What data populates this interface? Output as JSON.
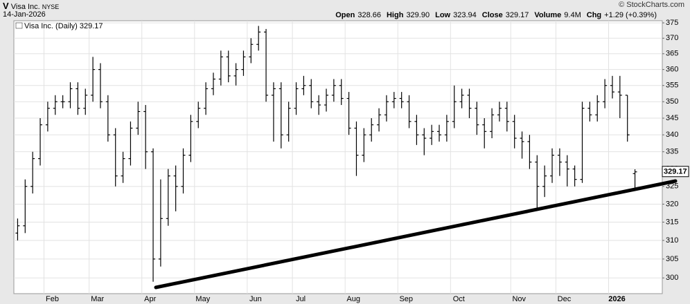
{
  "header": {
    "symbol": "V",
    "name": "Visa Inc.",
    "exchange": "NYSE",
    "date": "14-Jan-2026",
    "source": "© StockCharts.com",
    "quote": [
      {
        "label": "Open",
        "value": "328.66"
      },
      {
        "label": "High",
        "value": "329.90"
      },
      {
        "label": "Low",
        "value": "323.94"
      },
      {
        "label": "Close",
        "value": "329.17"
      },
      {
        "label": "Volume",
        "value": "9.4M"
      },
      {
        "label": "Chg",
        "value": "+1.29 (+0.39%)"
      }
    ]
  },
  "chart_data": {
    "type": "ohlc",
    "legend": "Visa Inc. (Daily) 329.17",
    "log_scale": true,
    "grid": true,
    "color": "#000000",
    "ylim": [
      295.9,
      375.7
    ],
    "yticks": [
      300,
      305,
      310,
      315,
      320,
      325,
      330,
      335,
      340,
      345,
      350,
      355,
      360,
      365,
      370,
      375
    ],
    "categories": [
      null,
      null,
      null,
      null,
      "Feb",
      null,
      null,
      null,
      null,
      null,
      "Mar",
      null,
      null,
      null,
      null,
      null,
      null,
      "Apr",
      null,
      null,
      null,
      null,
      null,
      null,
      "May",
      null,
      null,
      null,
      null,
      null,
      null,
      "Jun",
      null,
      null,
      null,
      null,
      null,
      "Jul",
      null,
      null,
      null,
      null,
      null,
      null,
      "Aug",
      null,
      null,
      null,
      null,
      null,
      null,
      "Sep",
      null,
      null,
      null,
      null,
      null,
      null,
      "Oct",
      null,
      null,
      null,
      null,
      null,
      null,
      null,
      "Nov",
      null,
      null,
      null,
      null,
      null,
      "Dec",
      null,
      null,
      null,
      null,
      null,
      null,
      "2026",
      null,
      null,
      null
    ],
    "open": [
      312,
      314,
      325,
      333,
      343,
      348,
      350,
      350,
      354,
      348,
      352,
      360,
      350,
      340,
      328,
      333,
      342,
      347,
      335,
      305,
      316,
      328,
      325,
      334,
      344,
      348,
      354,
      357,
      364,
      358,
      360,
      364,
      368,
      372,
      352,
      354,
      340,
      348,
      354,
      355,
      350,
      349,
      352,
      355,
      351,
      342,
      334,
      340,
      343,
      346,
      350,
      351,
      350,
      344,
      340,
      339,
      341,
      340,
      344,
      350,
      352,
      348,
      343,
      341,
      346,
      348,
      344,
      339,
      338,
      332,
      325,
      328,
      334,
      332,
      330,
      327,
      348,
      346,
      350,
      355,
      353,
      352,
      328.66
    ],
    "high": [
      316,
      327,
      335,
      345,
      350,
      352,
      352,
      356,
      356,
      354,
      364,
      362,
      352,
      342,
      335,
      344,
      350,
      349,
      336,
      327,
      330,
      331,
      336,
      346,
      350,
      356,
      359,
      366,
      366,
      362,
      366,
      370,
      374,
      373,
      356,
      356,
      350,
      356,
      358,
      357,
      352,
      354,
      357,
      357,
      353,
      344,
      342,
      345,
      348,
      352,
      353,
      353,
      352,
      346,
      342,
      343,
      343,
      346,
      355,
      354,
      354,
      350,
      345,
      348,
      350,
      350,
      346,
      341,
      340,
      334,
      331,
      336,
      336,
      334,
      331,
      350,
      350,
      352,
      357,
      358,
      358,
      352,
      329.9
    ],
    "low": [
      310,
      312,
      323,
      331,
      341,
      346,
      348,
      348,
      346,
      346,
      350,
      348,
      338,
      325,
      326,
      331,
      340,
      330,
      299,
      303,
      314,
      318,
      323,
      332,
      342,
      346,
      352,
      355,
      356,
      355,
      358,
      362,
      366,
      350,
      338,
      336,
      338,
      346,
      352,
      348,
      346,
      347,
      350,
      349,
      340,
      328,
      332,
      338,
      341,
      344,
      348,
      348,
      342,
      337,
      334,
      337,
      338,
      338,
      342,
      348,
      345,
      340,
      336,
      339,
      344,
      341,
      336,
      333,
      330,
      319,
      322,
      326,
      328,
      325,
      325,
      326,
      344,
      344,
      348,
      351,
      345,
      338,
      323.94
    ],
    "close": [
      314,
      325,
      333,
      343,
      348,
      350,
      350,
      354,
      348,
      352,
      360,
      350,
      340,
      328,
      333,
      342,
      347,
      335,
      305,
      316,
      328,
      325,
      334,
      344,
      348,
      354,
      357,
      364,
      358,
      360,
      364,
      368,
      372,
      352,
      354,
      340,
      348,
      354,
      355,
      350,
      349,
      352,
      355,
      351,
      342,
      334,
      340,
      343,
      346,
      350,
      351,
      350,
      344,
      340,
      339,
      341,
      340,
      344,
      350,
      352,
      348,
      343,
      341,
      346,
      348,
      344,
      339,
      338,
      332,
      325,
      328,
      334,
      332,
      330,
      327,
      348,
      346,
      350,
      355,
      353,
      352,
      340,
      329.17
    ]
  }
}
